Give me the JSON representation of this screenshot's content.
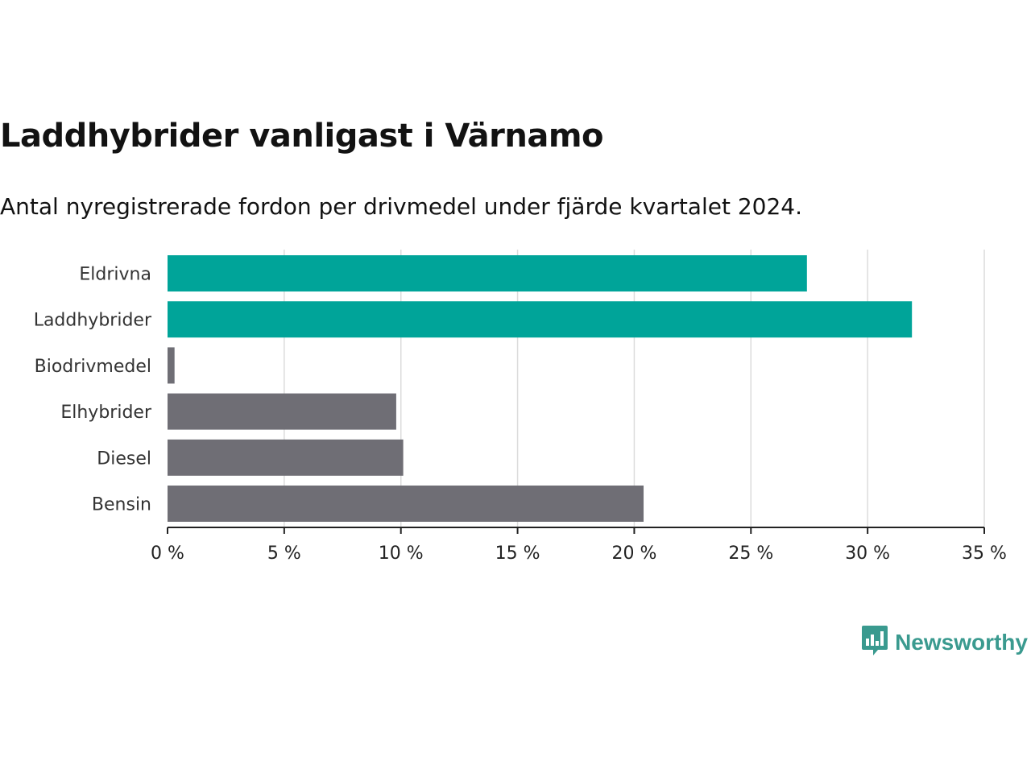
{
  "chart_data": {
    "type": "bar",
    "orientation": "horizontal",
    "title": "Laddhybrider vanligast i Värnamo",
    "subtitle": "Antal nyregistrerade fordon per drivmedel under fjärde kvartalet 2024.",
    "categories": [
      "Eldrivna",
      "Laddhybrider",
      "Biodrivmedel",
      "Elhybrider",
      "Diesel",
      "Bensin"
    ],
    "values": [
      27.4,
      31.9,
      0.3,
      9.8,
      10.1,
      20.4
    ],
    "highlighted": [
      true,
      true,
      false,
      false,
      false,
      false
    ],
    "xlim": [
      0,
      35
    ],
    "xticks": [
      0,
      5,
      10,
      15,
      20,
      25,
      30,
      35
    ],
    "xtick_labels": [
      "0 %",
      "5 %",
      "10 %",
      "15 %",
      "20 %",
      "25 %",
      "30 %",
      "35 %"
    ],
    "xlabel": "",
    "ylabel": "",
    "grid": true
  },
  "colors": {
    "highlight": "#00a499",
    "default": "#6f6e75",
    "brand": "#3a9a8f"
  },
  "brand": {
    "name": "Newsworthy",
    "icon": "newsworthy-logo-icon"
  }
}
